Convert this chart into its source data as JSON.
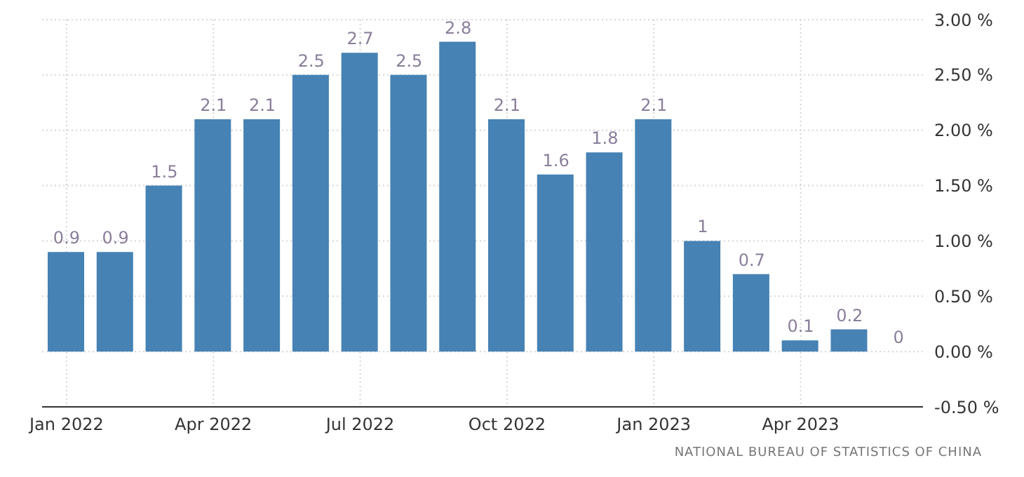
{
  "chart_data": {
    "type": "bar",
    "categories": [
      "Jan 2022",
      null,
      null,
      "Apr 2022",
      null,
      null,
      "Jul 2022",
      null,
      null,
      "Oct 2022",
      null,
      null,
      "Jan 2023",
      null,
      null,
      "Apr 2023",
      null,
      null
    ],
    "values": [
      0.9,
      0.9,
      1.5,
      2.1,
      2.1,
      2.5,
      2.7,
      2.5,
      2.8,
      2.1,
      1.6,
      1.8,
      2.1,
      1,
      0.7,
      0.1,
      0.2,
      0
    ],
    "color": "#4682b4",
    "ylim": [
      -0.5,
      3
    ],
    "yticks": [
      {
        "value": -0.5,
        "label": "-0.50 %"
      },
      {
        "value": 0,
        "label": "0.00 %"
      },
      {
        "value": 0.5,
        "label": "0.50 %"
      },
      {
        "value": 1,
        "label": "1.00 %"
      },
      {
        "value": 1.5,
        "label": "1.50 %"
      },
      {
        "value": 2,
        "label": "2.00 %"
      },
      {
        "value": 2.5,
        "label": "2.50 %"
      },
      {
        "value": 3,
        "label": "3.00 %"
      }
    ],
    "grid": true,
    "data_labels": true,
    "annotations": [
      "NATIONAL BUREAU OF STATISTICS OF CHINA"
    ]
  }
}
